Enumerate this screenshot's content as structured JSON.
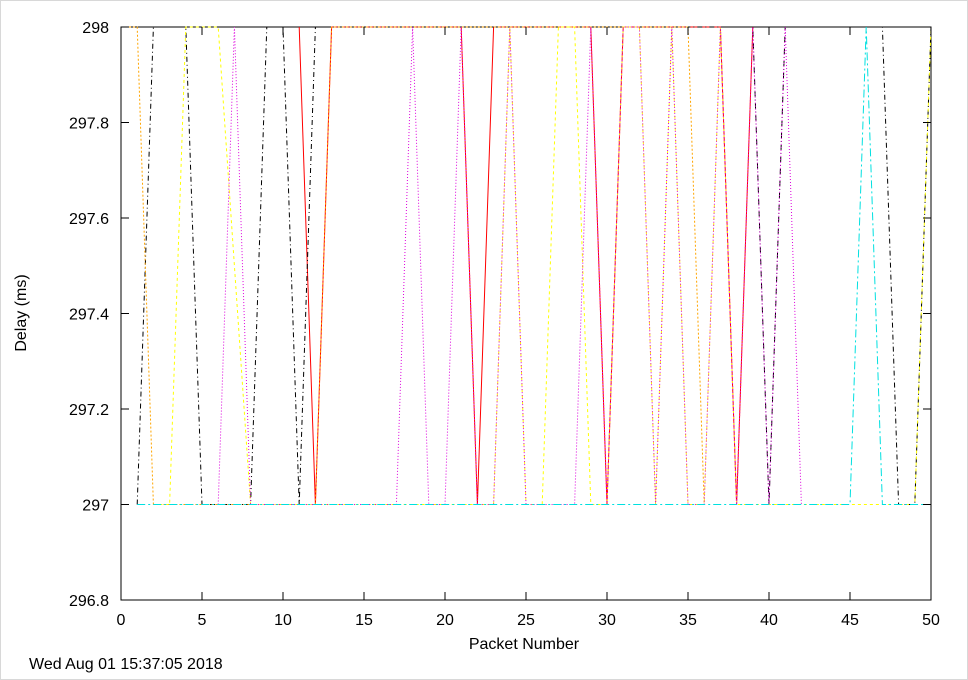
{
  "chart_data": {
    "type": "line",
    "title": "",
    "xlabel": "Packet Number",
    "ylabel": "Delay (ms)",
    "xlim": [
      0,
      50
    ],
    "ylim": [
      296.8,
      298
    ],
    "x_ticks": [
      0,
      5,
      10,
      15,
      20,
      25,
      30,
      35,
      40,
      45,
      50
    ],
    "y_ticks": [
      296.8,
      297,
      297.2,
      297.4,
      297.6,
      297.8,
      298
    ],
    "y_tick_labels": [
      "296.8",
      "297",
      "297.2",
      "297.4",
      "297.6",
      "297.8",
      "298"
    ],
    "grid": false,
    "legend": "none",
    "series": [
      {
        "color": "#ff0000",
        "dash": "none",
        "x": [
          11,
          12,
          13,
          21,
          22,
          23,
          29,
          30,
          31,
          37,
          38,
          39
        ],
        "y": [
          298,
          297,
          298,
          298,
          297,
          298,
          298,
          297,
          298,
          298,
          297,
          298
        ]
      },
      {
        "color": "#000000",
        "dash": "5,3,1,3",
        "x": [
          1,
          2,
          4,
          5,
          8,
          9,
          10,
          11,
          12,
          13,
          38,
          39,
          40,
          41,
          47,
          48,
          49,
          50
        ],
        "y": [
          297,
          298,
          298,
          297,
          297,
          298,
          298,
          297,
          298,
          298,
          298,
          298,
          297,
          298,
          298,
          297,
          297,
          298
        ]
      },
      {
        "color": "#ffa500",
        "dash": "2,2",
        "x": [
          0,
          1,
          2,
          12,
          13,
          35,
          36
        ],
        "y": [
          298,
          298,
          297,
          297,
          298,
          298,
          297
        ]
      },
      {
        "color": "#ffff00",
        "dash": "3,3",
        "x": [
          2,
          3,
          4,
          6,
          8,
          12,
          23,
          24,
          25,
          26,
          27,
          28,
          29,
          30,
          31,
          32,
          33,
          34,
          35,
          36,
          37,
          38,
          39,
          49,
          50
        ],
        "y": [
          297,
          297,
          298,
          298,
          297,
          297,
          297,
          298,
          297,
          297,
          298,
          298,
          297,
          297,
          298,
          298,
          297,
          298,
          297,
          297,
          298,
          297,
          297,
          297,
          298
        ]
      },
      {
        "color": "#dd00dd",
        "dash": "1,2",
        "x": [
          6,
          7,
          8,
          17,
          18,
          19,
          20,
          21,
          22,
          23,
          24,
          25,
          28,
          29,
          30,
          31,
          32,
          33,
          34,
          35,
          36,
          37,
          38,
          39,
          40,
          41,
          42
        ],
        "y": [
          297,
          298,
          297,
          297,
          298,
          297,
          297,
          298,
          297,
          297,
          298,
          297,
          297,
          298,
          297,
          298,
          298,
          297,
          298,
          297,
          297,
          298,
          297,
          298,
          297,
          298,
          297
        ]
      },
      {
        "color": "#00e0e0",
        "dash": "8,3,2,3",
        "x": [
          1,
          45,
          46,
          47,
          50
        ],
        "y": [
          297,
          297,
          298,
          297,
          297
        ]
      }
    ]
  },
  "footer": {
    "timestamp": "Wed Aug 01 15:37:05 2018"
  }
}
